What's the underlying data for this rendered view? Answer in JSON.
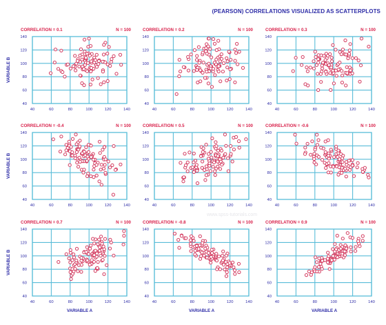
{
  "page": {
    "title": "(PEARSON) CORRELATIONS VISUALIZED AS SCATTERPLOTS",
    "watermark": "www.spss-tutorials.com"
  },
  "colors": {
    "title": "#2b2aa6",
    "panel_label": "#d8204a",
    "marker": "#d33a5f",
    "grid": "#58bcd8",
    "tick_text": "#2b2aa6"
  },
  "chart_data": [
    {
      "type": "scatter",
      "correlation_label": "CORRELATION = 0.1",
      "n_label": "N = 100",
      "r": 0.1,
      "n": 100,
      "xlabel": "",
      "ylabel": "VARIABLE B",
      "xlim": [
        40,
        140
      ],
      "ylim": [
        40,
        140
      ],
      "xticks": [
        40,
        60,
        80,
        100,
        120,
        140
      ],
      "yticks": [
        40,
        60,
        80,
        100,
        120,
        140
      ],
      "xtick_labels": [
        "40",
        "60",
        "80",
        "100",
        "120",
        "140"
      ],
      "ytick_labels": [
        "40",
        "60",
        "80",
        "100",
        "120",
        "140"
      ]
    },
    {
      "type": "scatter",
      "correlation_label": "CORRELATION = 0.2",
      "n_label": "N = 100",
      "r": 0.2,
      "n": 100,
      "xlabel": "",
      "ylabel": "",
      "xlim": [
        40,
        140
      ],
      "ylim": [
        40,
        140
      ],
      "xticks": [
        40,
        60,
        80,
        100,
        120,
        140
      ],
      "yticks": [
        40,
        60,
        80,
        100,
        120,
        140
      ],
      "xtick_labels": [
        "40",
        "60",
        "80",
        "100",
        "120",
        "140"
      ],
      "ytick_labels": [
        "40",
        "60",
        "80",
        "100",
        "120",
        "140"
      ]
    },
    {
      "type": "scatter",
      "correlation_label": "CORRELATION = 0.3",
      "n_label": "N = 100",
      "r": 0.3,
      "n": 100,
      "xlabel": "",
      "ylabel": "",
      "xlim": [
        40,
        140
      ],
      "ylim": [
        40,
        140
      ],
      "xticks": [
        40,
        60,
        80,
        100,
        120,
        140
      ],
      "yticks": [
        40,
        60,
        80,
        100,
        120,
        140
      ],
      "xtick_labels": [
        "40",
        "60",
        "80",
        "100",
        "120",
        "140"
      ],
      "ytick_labels": [
        "40",
        "60",
        "80",
        "100",
        "120",
        "140"
      ]
    },
    {
      "type": "scatter",
      "correlation_label": "CORRELATION = -0.4",
      "n_label": "N = 100",
      "r": -0.4,
      "n": 100,
      "xlabel": "",
      "ylabel": "VARIABLE B",
      "xlim": [
        40,
        140
      ],
      "ylim": [
        40,
        140
      ],
      "xticks": [
        40,
        60,
        80,
        100,
        120,
        140
      ],
      "yticks": [
        40,
        60,
        80,
        100,
        120,
        140
      ],
      "xtick_labels": [
        "40",
        "60",
        "80",
        "100",
        "120",
        "140"
      ],
      "ytick_labels": [
        "40",
        "60",
        "80",
        "100",
        "120",
        "140"
      ]
    },
    {
      "type": "scatter",
      "correlation_label": "CORRELATION = 0.5",
      "n_label": "N = 100",
      "r": 0.5,
      "n": 100,
      "xlabel": "",
      "ylabel": "",
      "xlim": [
        40,
        140
      ],
      "ylim": [
        40,
        140
      ],
      "xticks": [
        40,
        60,
        80,
        100,
        120,
        140
      ],
      "yticks": [
        40,
        60,
        80,
        100,
        120,
        140
      ],
      "xtick_labels": [
        "40",
        "60",
        "80",
        "100",
        "120",
        "140"
      ],
      "ytick_labels": [
        "40",
        "60",
        "80",
        "100",
        "120",
        "140"
      ]
    },
    {
      "type": "scatter",
      "correlation_label": "CORRELATION = -0.6",
      "n_label": "N = 100",
      "r": -0.6,
      "n": 100,
      "xlabel": "",
      "ylabel": "",
      "xlim": [
        40,
        140
      ],
      "ylim": [
        40,
        140
      ],
      "xticks": [
        40,
        60,
        80,
        100,
        120,
        140
      ],
      "yticks": [
        40,
        60,
        80,
        100,
        120,
        140
      ],
      "xtick_labels": [
        "40",
        "60",
        "80",
        "100",
        "120",
        "140"
      ],
      "ytick_labels": [
        "40",
        "60",
        "80",
        "100",
        "120",
        "140"
      ]
    },
    {
      "type": "scatter",
      "correlation_label": "CORRELATION = 0.7",
      "n_label": "N = 100",
      "r": 0.7,
      "n": 100,
      "xlabel": "VARIABLE A",
      "ylabel": "VARIABLE B",
      "xlim": [
        40,
        140
      ],
      "ylim": [
        40,
        140
      ],
      "xticks": [
        40,
        60,
        80,
        100,
        120,
        140
      ],
      "yticks": [
        40,
        60,
        80,
        100,
        120,
        140
      ],
      "xtick_labels": [
        "40",
        "60",
        "80",
        "100",
        "120",
        "140"
      ],
      "ytick_labels": [
        "40",
        "60",
        "80",
        "100",
        "120",
        "140"
      ]
    },
    {
      "type": "scatter",
      "correlation_label": "CORRELATION = -0.8",
      "n_label": "N = 100",
      "r": -0.8,
      "n": 100,
      "xlabel": "VARIABLE A",
      "ylabel": "",
      "xlim": [
        40,
        140
      ],
      "ylim": [
        40,
        140
      ],
      "xticks": [
        40,
        60,
        80,
        100,
        120,
        140
      ],
      "yticks": [
        40,
        60,
        80,
        100,
        120,
        140
      ],
      "xtick_labels": [
        "40",
        "60",
        "80",
        "100",
        "120",
        "140"
      ],
      "ytick_labels": [
        "40",
        "60",
        "80",
        "100",
        "120",
        "140"
      ]
    },
    {
      "type": "scatter",
      "correlation_label": "CORRELATION = 0.9",
      "n_label": "N = 100",
      "r": 0.9,
      "n": 100,
      "xlabel": "VARIABLE A",
      "ylabel": "",
      "xlim": [
        40,
        140
      ],
      "ylim": [
        40,
        140
      ],
      "xticks": [
        40,
        60,
        80,
        100,
        120,
        140
      ],
      "yticks": [
        40,
        60,
        80,
        100,
        120,
        140
      ],
      "xtick_labels": [
        "40",
        "60",
        "80",
        "100",
        "120",
        "140"
      ],
      "ytick_labels": [
        "40",
        "60",
        "80",
        "100",
        "120",
        "140"
      ]
    }
  ]
}
